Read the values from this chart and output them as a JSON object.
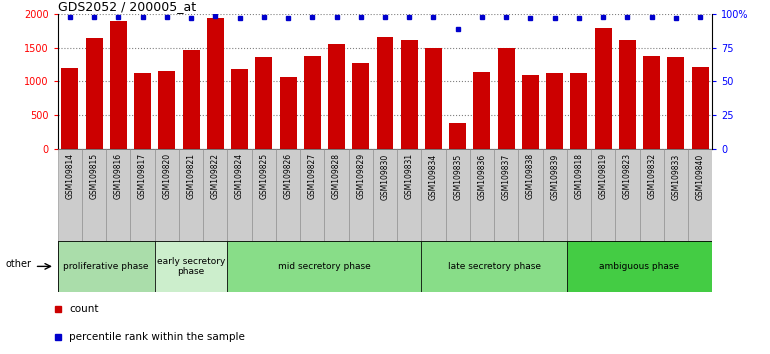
{
  "title": "GDS2052 / 200005_at",
  "samples": [
    "GSM109814",
    "GSM109815",
    "GSM109816",
    "GSM109817",
    "GSM109820",
    "GSM109821",
    "GSM109822",
    "GSM109824",
    "GSM109825",
    "GSM109826",
    "GSM109827",
    "GSM109828",
    "GSM109829",
    "GSM109830",
    "GSM109831",
    "GSM109834",
    "GSM109835",
    "GSM109836",
    "GSM109837",
    "GSM109838",
    "GSM109839",
    "GSM109818",
    "GSM109819",
    "GSM109823",
    "GSM109832",
    "GSM109833",
    "GSM109840"
  ],
  "counts": [
    1200,
    1650,
    1900,
    1130,
    1150,
    1460,
    1950,
    1180,
    1360,
    1070,
    1380,
    1560,
    1270,
    1660,
    1610,
    1490,
    380,
    1140,
    1490,
    1100,
    1130,
    1130,
    1800,
    1610,
    1380,
    1370,
    1220
  ],
  "percentiles": [
    98,
    98,
    98,
    98,
    98,
    97,
    99,
    97,
    98,
    97,
    98,
    98,
    98,
    98,
    98,
    98,
    89,
    98,
    98,
    97,
    97,
    97,
    98,
    98,
    98,
    97,
    98
  ],
  "bar_color": "#cc0000",
  "dot_color": "#0000cc",
  "ylim_left": [
    0,
    2000
  ],
  "ylim_right": [
    0,
    100
  ],
  "yticks_left": [
    0,
    500,
    1000,
    1500,
    2000
  ],
  "yticks_right": [
    0,
    25,
    50,
    75,
    100
  ],
  "phases": [
    {
      "label": "proliferative phase",
      "start": 0,
      "end": 4,
      "color": "#aaddaa"
    },
    {
      "label": "early secretory\nphase",
      "start": 4,
      "end": 7,
      "color": "#cceecc"
    },
    {
      "label": "mid secretory phase",
      "start": 7,
      "end": 15,
      "color": "#88dd88"
    },
    {
      "label": "late secretory phase",
      "start": 15,
      "end": 21,
      "color": "#88dd88"
    },
    {
      "label": "ambiguous phase",
      "start": 21,
      "end": 27,
      "color": "#44cc44"
    }
  ],
  "other_label": "other",
  "legend_count_label": "count",
  "legend_pct_label": "percentile rank within the sample",
  "tick_area_color": "#cccccc"
}
